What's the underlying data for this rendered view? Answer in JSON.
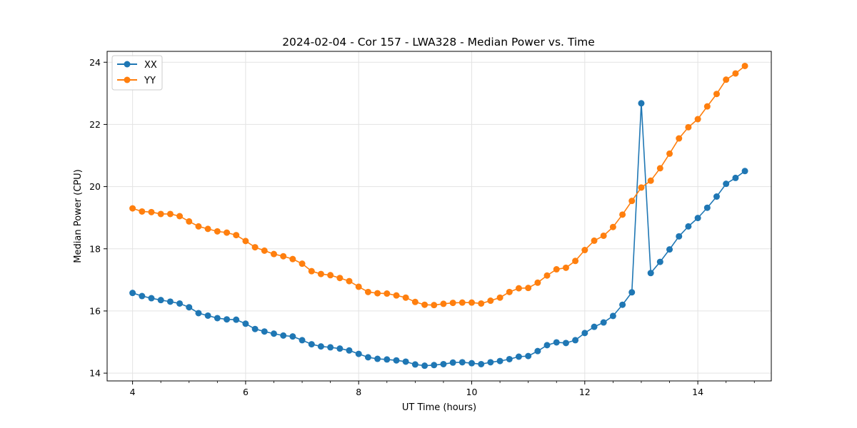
{
  "chart_data": {
    "type": "line",
    "title": "2024-02-04 - Cor 157 - LWA328 - Median Power vs. Time",
    "xlabel": "UT Time (hours)",
    "ylabel": "Median Power (CPU)",
    "xlim": [
      3.55,
      15.3
    ],
    "ylim": [
      13.75,
      24.35
    ],
    "xticks": [
      4,
      6,
      8,
      10,
      12,
      14
    ],
    "xtick_labels": [
      "4",
      "6",
      "8",
      "10",
      "12",
      "14"
    ],
    "yticks": [
      14,
      16,
      18,
      20,
      22,
      24
    ],
    "ytick_labels": [
      "14",
      "16",
      "18",
      "20",
      "22",
      "24"
    ],
    "grid": true,
    "legend_position": "top-left",
    "x": [
      4.0,
      4.167,
      4.333,
      4.5,
      4.667,
      4.833,
      5.0,
      5.167,
      5.333,
      5.5,
      5.667,
      5.833,
      6.0,
      6.167,
      6.333,
      6.5,
      6.667,
      6.833,
      7.0,
      7.167,
      7.333,
      7.5,
      7.667,
      7.833,
      8.0,
      8.167,
      8.333,
      8.5,
      8.667,
      8.833,
      9.0,
      9.167,
      9.333,
      9.5,
      9.667,
      9.833,
      10.0,
      10.167,
      10.333,
      10.5,
      10.667,
      10.833,
      11.0,
      11.167,
      11.333,
      11.5,
      11.667,
      11.833,
      12.0,
      12.167,
      12.333,
      12.5,
      12.667,
      12.833,
      13.0,
      13.167,
      13.333,
      13.5,
      13.667,
      13.833,
      14.0,
      14.167,
      14.333,
      14.5,
      14.667,
      14.833
    ],
    "series": [
      {
        "name": "XX",
        "color": "#1f77b4",
        "values": [
          16.58,
          16.48,
          16.41,
          16.35,
          16.3,
          16.24,
          16.12,
          15.93,
          15.85,
          15.77,
          15.73,
          15.72,
          15.59,
          15.42,
          15.34,
          15.27,
          15.21,
          15.18,
          15.06,
          14.93,
          14.86,
          14.83,
          14.79,
          14.73,
          14.62,
          14.51,
          14.46,
          14.44,
          14.41,
          14.37,
          14.28,
          14.24,
          14.26,
          14.29,
          14.34,
          14.35,
          14.32,
          14.29,
          14.35,
          14.39,
          14.45,
          14.53,
          14.55,
          14.71,
          14.9,
          14.99,
          14.97,
          15.06,
          15.29,
          15.49,
          15.63,
          15.84,
          16.2,
          16.6,
          22.68,
          17.22,
          17.58,
          17.98,
          18.4,
          18.72,
          18.99,
          19.32,
          19.68,
          20.09,
          20.28,
          20.5
        ]
      },
      {
        "name": "YY",
        "color": "#ff7f0e",
        "values": [
          19.3,
          19.2,
          19.18,
          19.12,
          19.12,
          19.05,
          18.88,
          18.72,
          18.64,
          18.56,
          18.52,
          18.44,
          18.25,
          18.05,
          17.94,
          17.83,
          17.76,
          17.67,
          17.52,
          17.28,
          17.19,
          17.15,
          17.06,
          16.96,
          16.78,
          16.61,
          16.57,
          16.56,
          16.5,
          16.43,
          16.29,
          16.2,
          16.19,
          16.23,
          16.26,
          16.27,
          16.27,
          16.24,
          16.33,
          16.43,
          16.61,
          16.73,
          16.74,
          16.91,
          17.14,
          17.34,
          17.39,
          17.61,
          17.96,
          18.26,
          18.42,
          18.7,
          19.1,
          19.54,
          19.97,
          20.19,
          20.59,
          21.06,
          21.55,
          21.91,
          22.17,
          22.58,
          22.98,
          23.44,
          23.64,
          23.88
        ]
      }
    ]
  }
}
